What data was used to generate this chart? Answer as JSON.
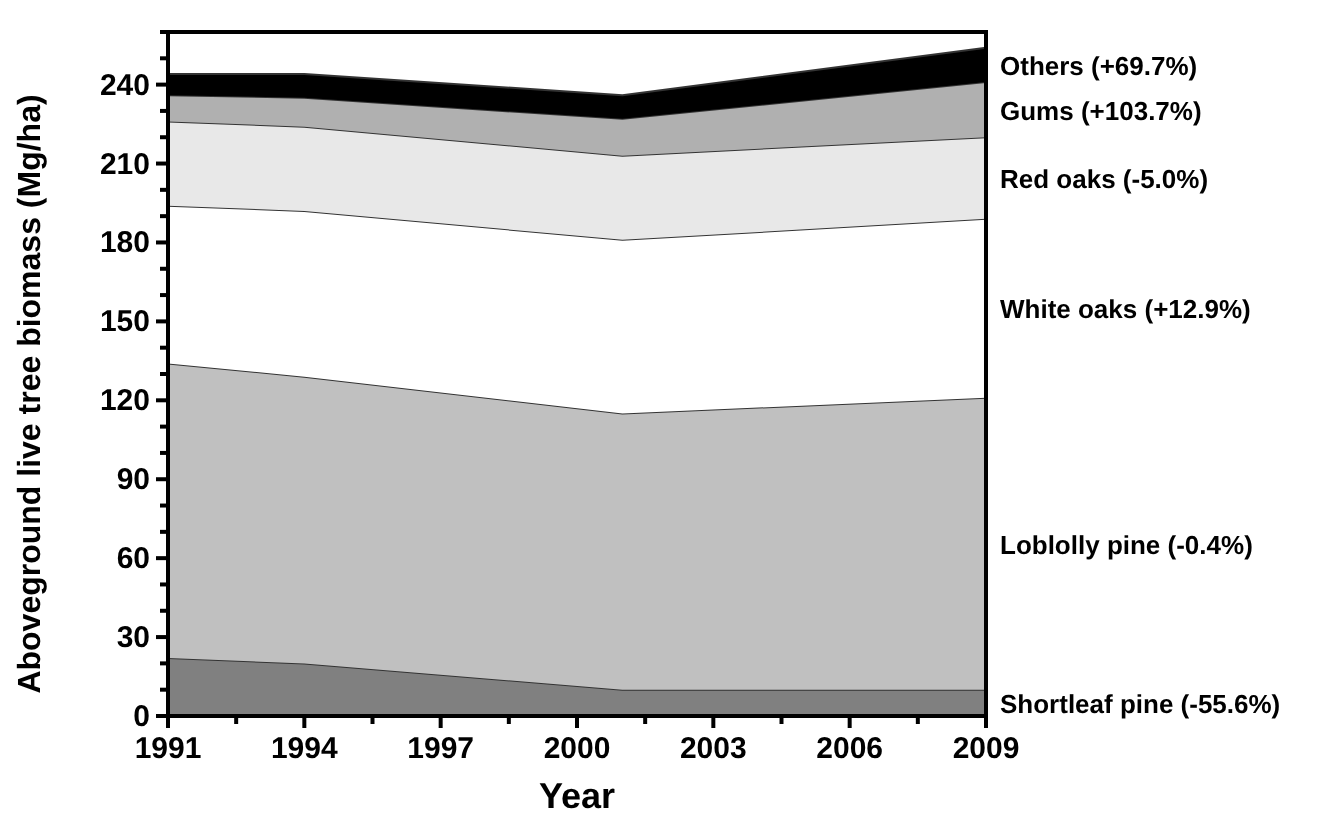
{
  "chart_data": {
    "type": "area",
    "stacked": true,
    "xlabel": "Year",
    "ylabel": "Aboveground live tree biomass (Mg/ha)",
    "x": [
      1991,
      1994,
      2001,
      2009
    ],
    "xlim": [
      1991,
      2009
    ],
    "xticks": [
      1991,
      {
        "value": 1992.5,
        "label": null
      },
      1994,
      {
        "value": 1995.5,
        "label": null
      },
      1997,
      {
        "value": 1998.5,
        "label": null
      },
      2000,
      {
        "value": 2001.5,
        "label": null
      },
      2003,
      {
        "value": 2004.5,
        "label": null
      },
      2006,
      {
        "value": 2007.5,
        "label": null
      },
      2009
    ],
    "ylim": [
      0,
      260
    ],
    "yticks": [
      0,
      {
        "value": 10,
        "label": null
      },
      {
        "value": 20,
        "label": null
      },
      30,
      {
        "value": 40,
        "label": null
      },
      {
        "value": 50,
        "label": null
      },
      60,
      {
        "value": 70,
        "label": null
      },
      {
        "value": 80,
        "label": null
      },
      90,
      {
        "value": 100,
        "label": null
      },
      {
        "value": 110,
        "label": null
      },
      120,
      {
        "value": 130,
        "label": null
      },
      {
        "value": 140,
        "label": null
      },
      150,
      {
        "value": 160,
        "label": null
      },
      {
        "value": 170,
        "label": null
      },
      180,
      {
        "value": 190,
        "label": null
      },
      {
        "value": 200,
        "label": null
      },
      210,
      {
        "value": 220,
        "label": null
      },
      {
        "value": 230,
        "label": null
      },
      240,
      {
        "value": 250,
        "label": null
      },
      {
        "value": 260,
        "label": null
      }
    ],
    "grid": false,
    "legend": false,
    "series": [
      {
        "name": "Shortleaf pine (-55.6%)",
        "color": "#808080",
        "values": [
          22,
          20,
          10,
          10
        ]
      },
      {
        "name": "Loblolly pine (-0.4%)",
        "color": "#c0c0c0",
        "values": [
          112,
          109,
          105,
          111
        ]
      },
      {
        "name": "White oaks (+12.9%)",
        "color": "#ffffff",
        "values": [
          60,
          63,
          66,
          68
        ]
      },
      {
        "name": "Red oaks (-5.0%)",
        "color": "#e8e8e8",
        "values": [
          32,
          32,
          32,
          31
        ]
      },
      {
        "name": "Gums (+103.7%)",
        "color": "#b0b0b0",
        "values": [
          10,
          11,
          14,
          21
        ]
      },
      {
        "name": "Others (+69.7%)",
        "color": "#000000",
        "values": [
          8,
          9,
          9,
          13
        ]
      }
    ]
  }
}
